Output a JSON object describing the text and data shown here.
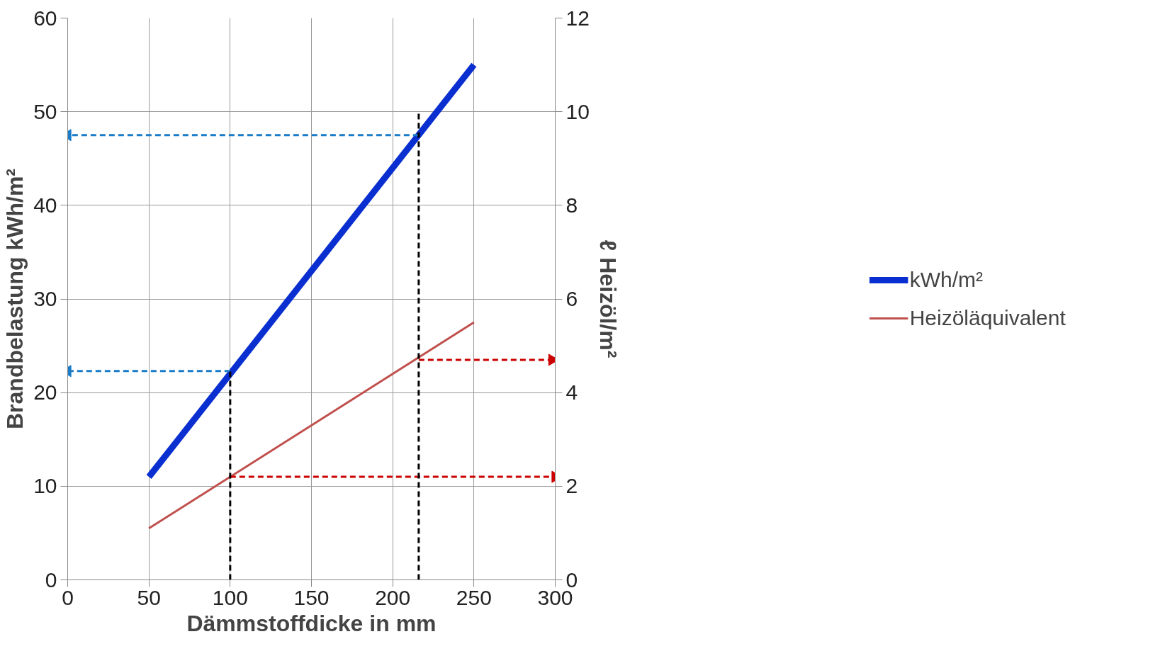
{
  "chart_data": {
    "type": "line",
    "xlabel": "Dämmstoffdicke in mm",
    "ylabel": "Brandbelastung kWh/m²",
    "y2label": "ℓ Heizöl/m²",
    "xlim": [
      0,
      300
    ],
    "xticks": [
      0,
      50,
      100,
      150,
      200,
      250,
      300
    ],
    "ylim": [
      0,
      60
    ],
    "yticks": [
      0,
      10,
      20,
      30,
      40,
      50,
      60
    ],
    "y2lim": [
      0,
      12
    ],
    "y2ticks": [
      0,
      2,
      4,
      6,
      8,
      10,
      12
    ],
    "grid": true,
    "legend": "right",
    "series": [
      {
        "name": "kWh/m²",
        "color": "#0a2fd0",
        "x": [
          50,
          250
        ],
        "values": [
          11,
          55
        ],
        "line_style": "solid"
      },
      {
        "name": "Heizöläquivalent",
        "color": "#c0504d",
        "x": [
          50,
          250
        ],
        "values": [
          1.1,
          5.5
        ],
        "axis": "y2",
        "line_style": "solid"
      },
      {
        "color": "#1a7cc8",
        "x": [
          216,
          0
        ],
        "values": [
          47.5,
          47.5
        ],
        "line_style": "dashed"
      },
      {
        "color": "#1a7cc8",
        "x": [
          100,
          0
        ],
        "values": [
          22.3,
          22.3
        ],
        "line_style": "dashed"
      },
      {
        "color": "#cc0000",
        "x": [
          216,
          298
        ],
        "values": [
          4.7,
          4.7
        ],
        "axis": "y2",
        "line_style": "dashed"
      },
      {
        "color": "#cc0000",
        "x": [
          100,
          300
        ],
        "values": [
          2.2,
          2.2
        ],
        "axis": "y2",
        "line_style": "dashed"
      },
      {
        "color": "#000000",
        "x": [
          100,
          100
        ],
        "values": [
          0,
          22.3
        ],
        "line_style": "dashed"
      },
      {
        "color": "#000000",
        "x": [
          216,
          216
        ],
        "values": [
          0,
          50
        ],
        "line_style": "dashed"
      }
    ]
  }
}
